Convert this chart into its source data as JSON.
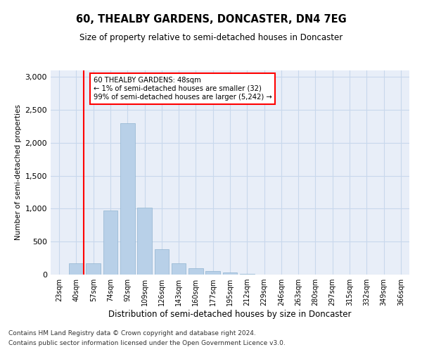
{
  "title": "60, THEALBY GARDENS, DONCASTER, DN4 7EG",
  "subtitle": "Size of property relative to semi-detached houses in Doncaster",
  "xlabel": "Distribution of semi-detached houses by size in Doncaster",
  "ylabel": "Number of semi-detached properties",
  "categories": [
    "23sqm",
    "40sqm",
    "57sqm",
    "74sqm",
    "92sqm",
    "109sqm",
    "126sqm",
    "143sqm",
    "160sqm",
    "177sqm",
    "195sqm",
    "212sqm",
    "229sqm",
    "246sqm",
    "263sqm",
    "280sqm",
    "297sqm",
    "315sqm",
    "332sqm",
    "349sqm",
    "366sqm"
  ],
  "values": [
    5,
    175,
    175,
    970,
    2300,
    1020,
    380,
    170,
    100,
    55,
    30,
    12,
    5,
    2,
    5,
    2,
    2,
    1,
    1,
    1,
    1
  ],
  "bar_color": "#b8d0e8",
  "bar_edge_color": "#90b4d0",
  "grid_color": "#c8d8ec",
  "background_color": "#e8eef8",
  "annotation_box_text": "60 THEALBY GARDENS: 48sqm\n← 1% of semi-detached houses are smaller (32)\n99% of semi-detached houses are larger (5,242) →",
  "annotation_box_color": "red",
  "property_line_x": 1.42,
  "ylim": [
    0,
    3100
  ],
  "yticks": [
    0,
    500,
    1000,
    1500,
    2000,
    2500,
    3000
  ],
  "footer_line1": "Contains HM Land Registry data © Crown copyright and database right 2024.",
  "footer_line2": "Contains public sector information licensed under the Open Government Licence v3.0."
}
